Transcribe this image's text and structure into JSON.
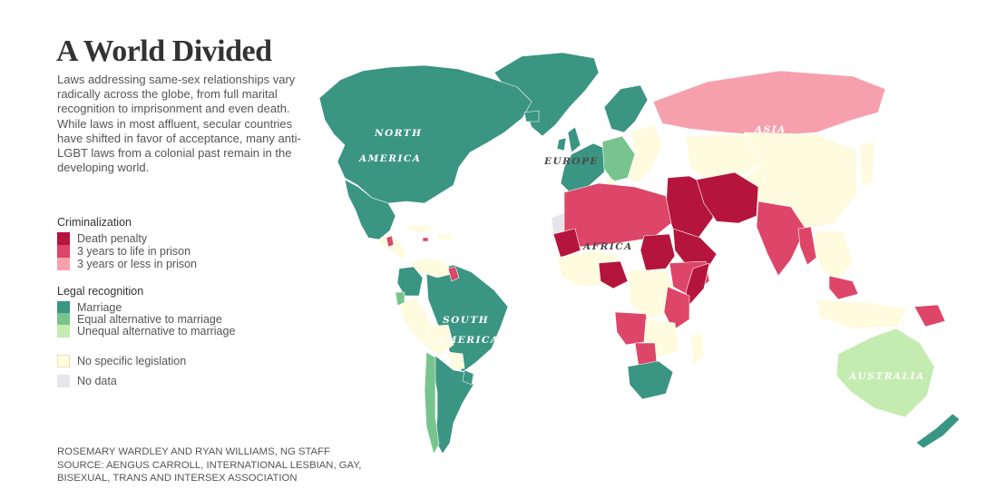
{
  "title": "A World Divided",
  "description": "Laws addressing same-sex relationships vary radically across the globe, from full marital recognition to imprisonment and even death. While laws in most affluent, secular countries have shifted in favor of acceptance, many anti-LGBT laws from a colonial past remain in the developing world.",
  "legend": {
    "criminalization": {
      "heading": "Criminalization",
      "items": [
        {
          "label": "Death penalty",
          "color": "#b5153c"
        },
        {
          "label": "3 years to life in prison",
          "color": "#dd4668"
        },
        {
          "label": "3 years or less in prison",
          "color": "#f6a0ae"
        }
      ]
    },
    "recognition": {
      "heading": "Legal recognition",
      "items": [
        {
          "label": "Marriage",
          "color": "#3a9582"
        },
        {
          "label": "Equal alternative to marriage",
          "color": "#78c48f"
        },
        {
          "label": "Unequal alternative to marriage",
          "color": "#c4ecb1"
        }
      ]
    },
    "other": [
      {
        "label": "No specific legislation",
        "color": "#fefbde"
      },
      {
        "label": "No data",
        "color": "#e6e6ea"
      }
    ]
  },
  "map": {
    "labels": {
      "north_america_1": "NORTH",
      "north_america_2": "AMERICA",
      "south_america_1": "SOUTH",
      "south_america_2": "AMERICA",
      "europe": "EUROPE",
      "africa": "AFRICA",
      "asia": "ASIA",
      "australia": "AUSTRALIA"
    },
    "colors": {
      "marriage": "#3a9582",
      "equal_alternative": "#78c48f",
      "unequal_alternative": "#c4ecb1",
      "death": "#b5153c",
      "prison_long": "#dd4668",
      "prison_short": "#f6a0ae",
      "none": "#fefbde",
      "no_data": "#e6e6ea"
    }
  },
  "credits": [
    "ROSEMARY WARDLEY AND RYAN WILLIAMS, NG STAFF",
    "SOURCE: AENGUS CARROLL, INTERNATIONAL LESBIAN, GAY,",
    "BISEXUAL, TRANS AND INTERSEX ASSOCIATION"
  ]
}
